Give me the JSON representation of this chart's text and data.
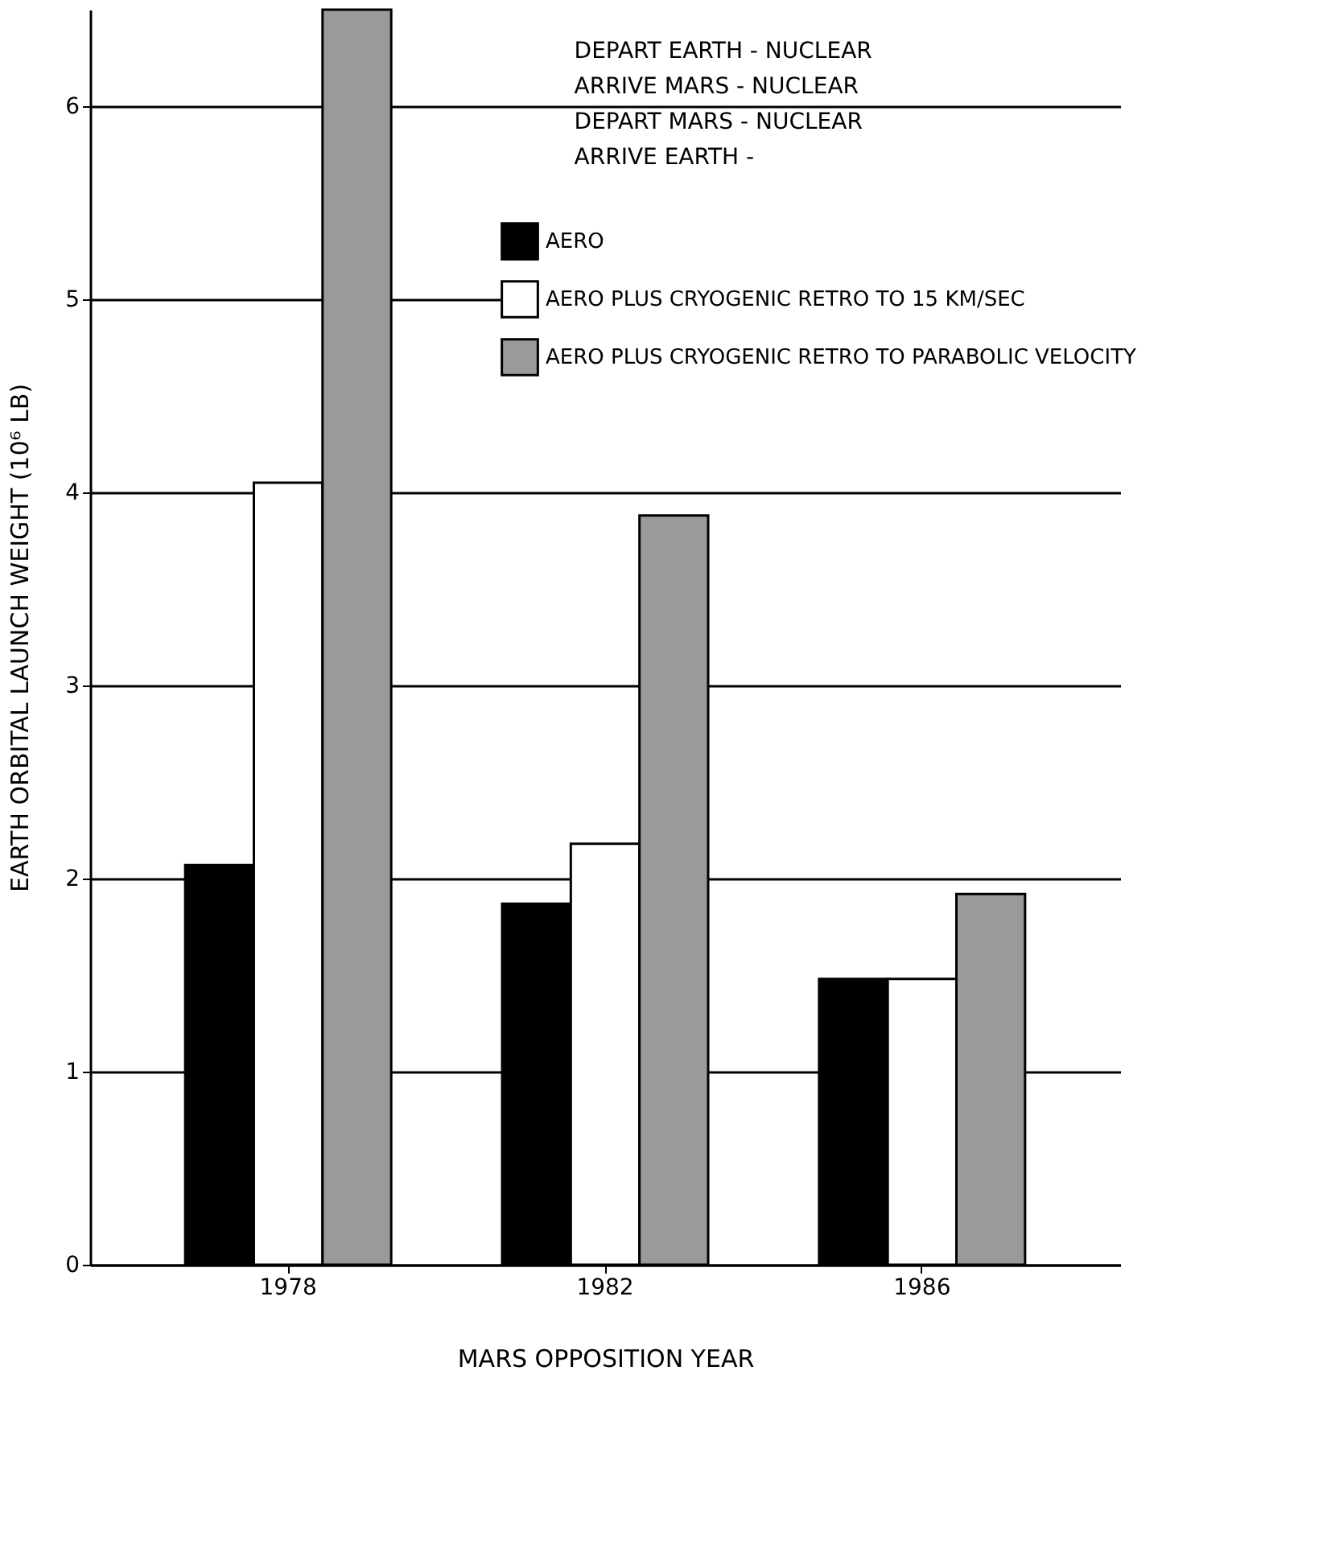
{
  "chart_data": {
    "type": "bar",
    "xlabel": "MARS OPPOSITION YEAR",
    "ylabel": "EARTH ORBITAL LAUNCH WEIGHT (10⁶ LB)",
    "categories": [
      "1978",
      "1982",
      "1986"
    ],
    "series": [
      {
        "name": "AERO",
        "color": "#000000",
        "values": [
          2.07,
          1.87,
          1.48
        ]
      },
      {
        "name": "AERO PLUS CRYOGENIC RETRO TO 15 KM/SEC",
        "color": "#ffffff",
        "values": [
          4.05,
          2.18,
          1.48
        ]
      },
      {
        "name": "AERO PLUS CRYOGENIC RETRO TO PARABOLIC VELOCITY",
        "color": "#9a9a9a",
        "values": [
          6.5,
          3.88,
          1.92
        ]
      }
    ],
    "ylim": [
      0,
      6.5
    ],
    "yticks": [
      0,
      1,
      2,
      3,
      4,
      5,
      6
    ],
    "grid": "y",
    "legend": "top right",
    "annotations": [
      "DEPART EARTH   -  NUCLEAR",
      "ARRIVE MARS    -  NUCLEAR",
      "DEPART MARS    -  NUCLEAR",
      "ARRIVE EARTH   -"
    ]
  }
}
